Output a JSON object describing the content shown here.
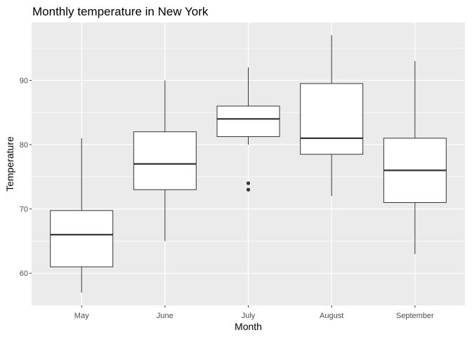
{
  "chart_data": {
    "type": "boxplot",
    "title": "Monthly temperature in New York",
    "xlabel": "Month",
    "ylabel": "Temperature",
    "categories": [
      "May",
      "June",
      "July",
      "August",
      "September"
    ],
    "ylim": [
      55,
      99
    ],
    "yticks": [
      60,
      70,
      80,
      90
    ],
    "grid": true,
    "legend": "none",
    "boxes": [
      {
        "category": "May",
        "min": 57,
        "q1": 61,
        "median": 66,
        "q3": 69.75,
        "max": 81,
        "outliers": []
      },
      {
        "category": "June",
        "min": 65,
        "q1": 73,
        "median": 77,
        "q3": 82,
        "max": 90,
        "outliers": []
      },
      {
        "category": "July",
        "min": 80,
        "q1": 81.25,
        "median": 84,
        "q3": 86,
        "max": 92,
        "outliers": [
          73,
          74
        ]
      },
      {
        "category": "August",
        "min": 72,
        "q1": 78.5,
        "median": 81,
        "q3": 89.5,
        "max": 97,
        "outliers": []
      },
      {
        "category": "September",
        "min": 63,
        "q1": 71,
        "median": 76,
        "q3": 81,
        "max": 93,
        "outliers": []
      }
    ],
    "colors": {
      "panel_background": "#ebebeb",
      "grid_major": "#ffffff",
      "box_fill": "#ffffff",
      "box_stroke": "#333333",
      "tick_text": "#4d4d4d"
    }
  }
}
